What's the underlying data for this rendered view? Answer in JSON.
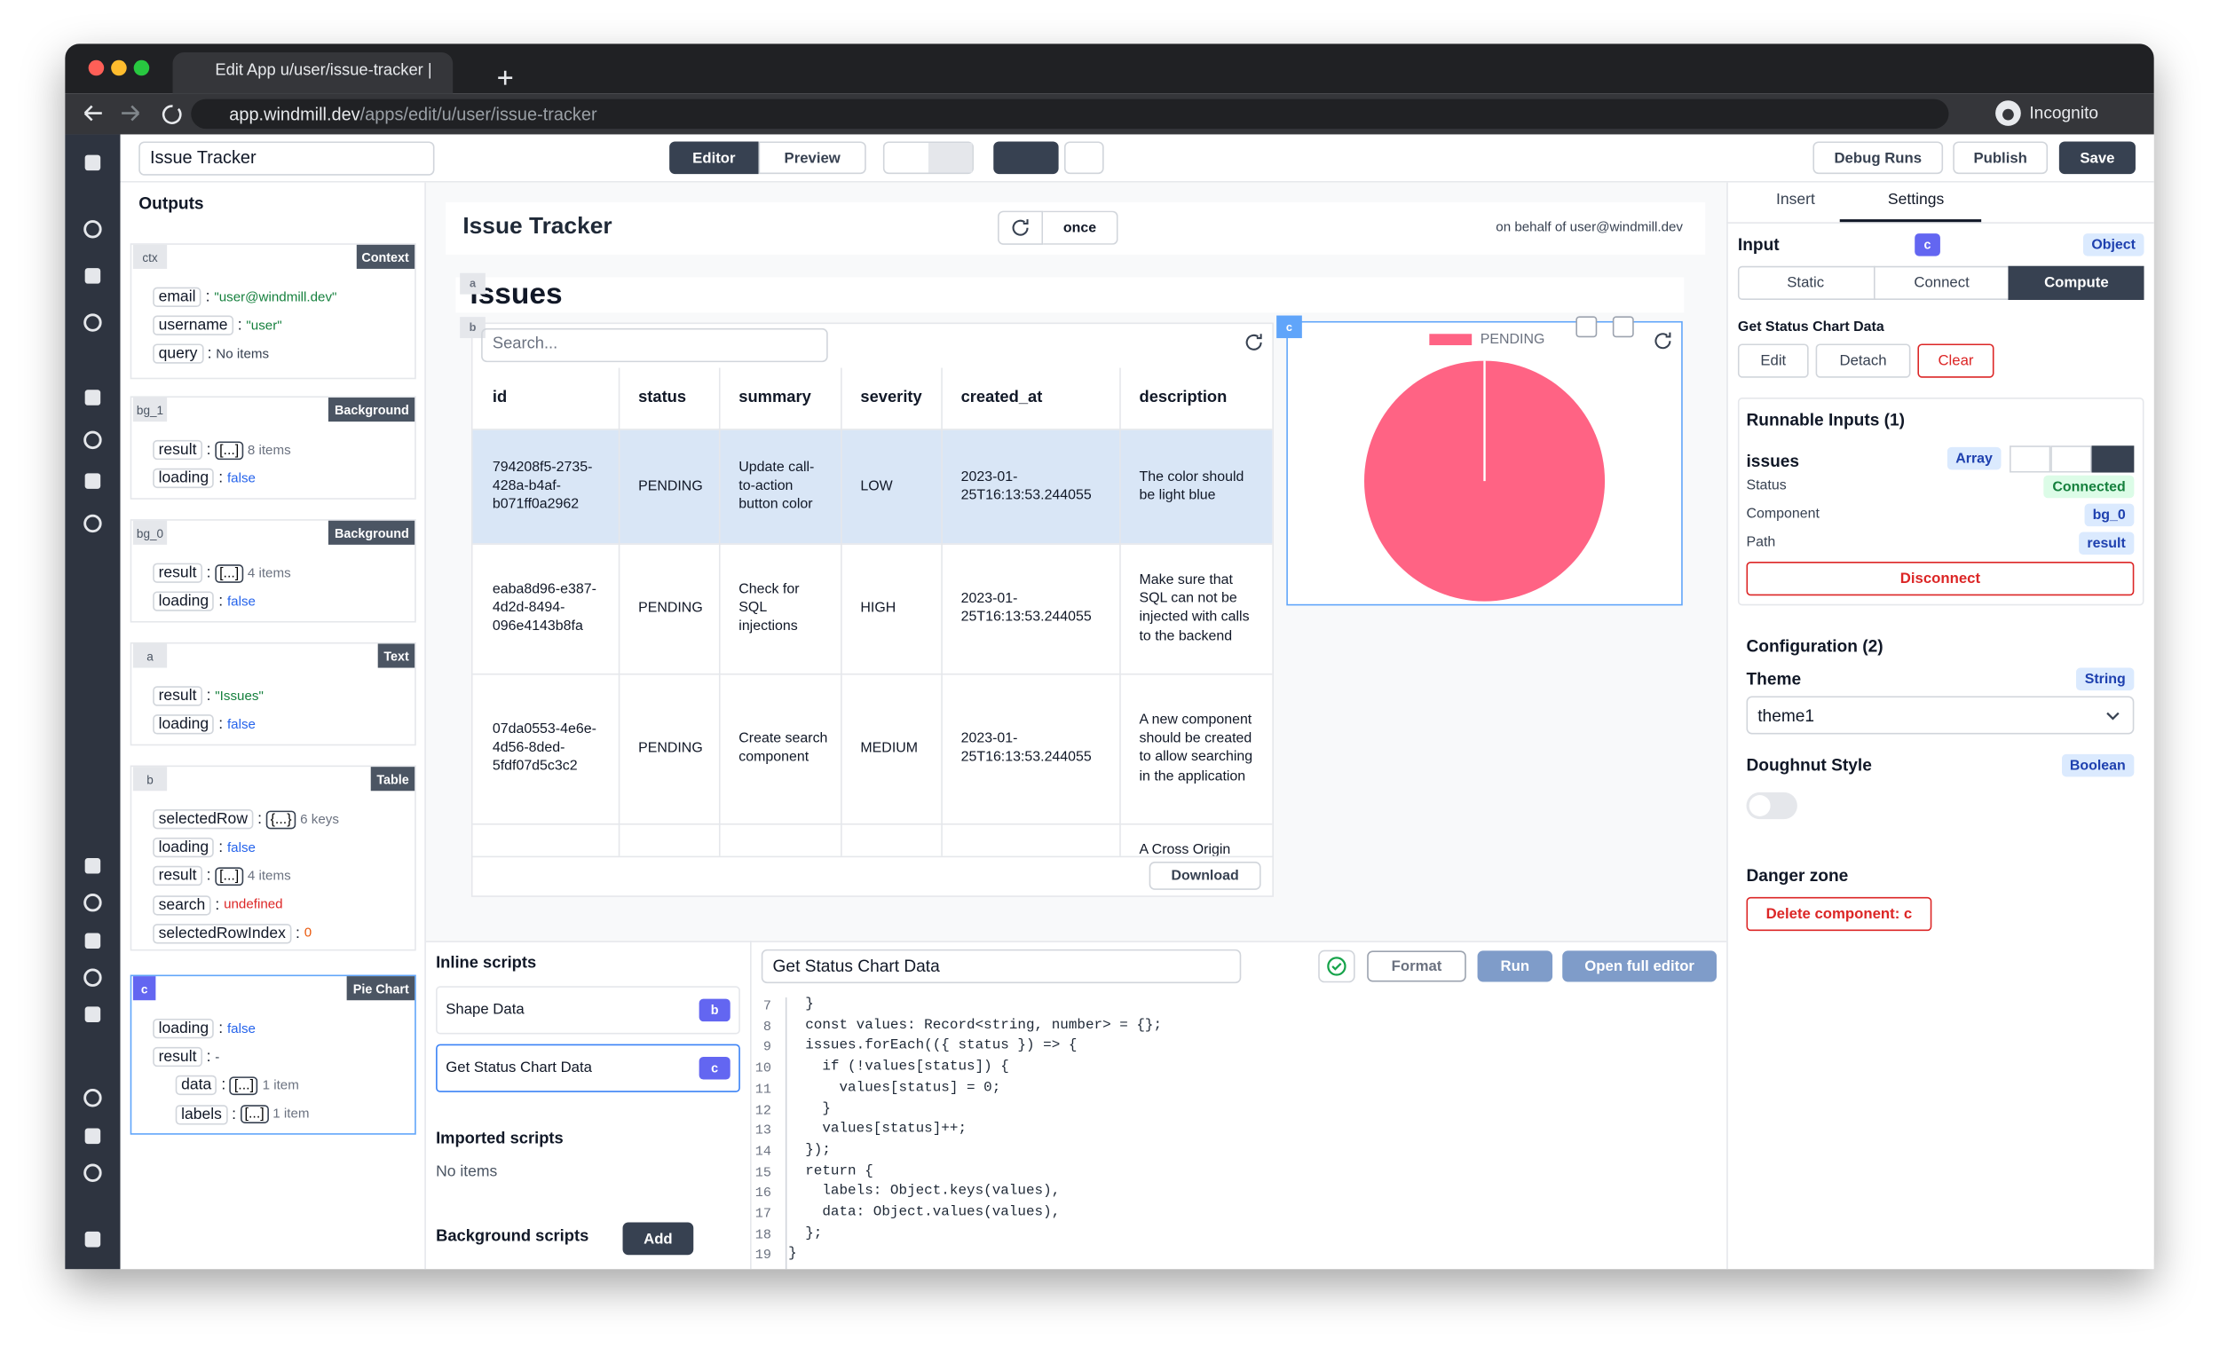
{
  "browser": {
    "tab_title": "Edit App u/user/issue-tracker |",
    "url_host": "app.windmill.dev",
    "url_path": "/apps/edit/u/user/issue-tracker",
    "profile": "Incognito"
  },
  "toolbar": {
    "app_name": "Issue Tracker",
    "editor": "Editor",
    "preview": "Preview",
    "debug_runs": "Debug Runs",
    "publish": "Publish",
    "save": "Save"
  },
  "outputs": {
    "title": "Outputs",
    "separator": ":",
    "panels": [
      {
        "id": "ctx",
        "kind": "Context",
        "rows": [
          {
            "key": "email",
            "value": "\"user@windmill.dev\""
          },
          {
            "key": "username",
            "value": "\"user\""
          },
          {
            "key": "query",
            "value": "No items"
          }
        ]
      },
      {
        "id": "bg_1",
        "kind": "Background",
        "rows": [
          {
            "key": "result",
            "badge": "[...]",
            "note": "8 items"
          },
          {
            "key": "loading",
            "value": "false"
          }
        ]
      },
      {
        "id": "bg_0",
        "kind": "Background",
        "rows": [
          {
            "key": "result",
            "badge": "[...]",
            "note": "4 items"
          },
          {
            "key": "loading",
            "value": "false"
          }
        ]
      },
      {
        "id": "a",
        "kind": "Text",
        "rows": [
          {
            "key": "result",
            "value": "\"Issues\""
          },
          {
            "key": "loading",
            "value": "false"
          }
        ]
      },
      {
        "id": "b",
        "kind": "Table",
        "rows": [
          {
            "key": "selectedRow",
            "badge": "{...}",
            "note": "6 keys"
          },
          {
            "key": "loading",
            "value": "false"
          },
          {
            "key": "result",
            "badge": "[...]",
            "note": "4 items"
          },
          {
            "key": "search",
            "value": "undefined"
          },
          {
            "key": "selectedRowIndex",
            "value": "0"
          }
        ]
      },
      {
        "id": "c",
        "kind": "Pie Chart",
        "rows": [
          {
            "key": "loading",
            "value": "false"
          },
          {
            "key": "result",
            "value": "-",
            "children": [
              {
                "key": "data",
                "badge": "[...]",
                "note": "1 item"
              },
              {
                "key": "labels",
                "badge": "[...]",
                "note": "1 item"
              }
            ]
          }
        ]
      }
    ]
  },
  "canvas": {
    "title": "Issue Tracker",
    "refresh_mode": "once",
    "on_behalf": "on behalf of user@windmill.dev",
    "components": {
      "a": {
        "id": "a",
        "text": "Issues"
      },
      "b": {
        "id": "b",
        "search_placeholder": "Search...",
        "columns": [
          "id",
          "status",
          "summary",
          "severity",
          "created_at",
          "description"
        ],
        "rows": [
          [
            "794208f5-2735-428a-b4af-b071ff0a2962",
            "PENDING",
            "Update call-to-action button color",
            "LOW",
            "2023-01-25T16:13:53.244055",
            "The color should be light blue"
          ],
          [
            "eaba8d96-e387-4d2d-8494-096e4143b8fa",
            "PENDING",
            "Check for SQL injections",
            "HIGH",
            "2023-01-25T16:13:53.244055",
            "Make sure that SQL can not be injected with calls to the backend"
          ],
          [
            "07da0553-4e6e-4d56-8ded-5fdf07d5c3c2",
            "PENDING",
            "Create search component",
            "MEDIUM",
            "2023-01-25T16:13:53.244055",
            "A new component should be created to allow searching in the application"
          ],
          [
            null,
            null,
            null,
            null,
            null,
            "A Cross Origin"
          ]
        ],
        "download": "Download"
      },
      "c": {
        "id": "c"
      }
    }
  },
  "chart_data": {
    "type": "pie",
    "categories": [
      "PENDING"
    ],
    "values": [
      4
    ],
    "colors": [
      "#ff6384"
    ]
  },
  "scripts": {
    "inline_title": "Inline scripts",
    "inline": [
      {
        "name": "Shape Data",
        "id": "b"
      },
      {
        "name": "Get Status Chart Data",
        "id": "c"
      }
    ],
    "imported_title": "Imported scripts",
    "imported_empty": "No items",
    "background_title": "Background scripts",
    "add": "Add"
  },
  "editor": {
    "script_name": "Get Status Chart Data",
    "format": "Format",
    "run": "Run",
    "open_full": "Open full editor",
    "lines": [
      {
        "n": 7,
        "code": "  }"
      },
      {
        "n": 8,
        "code": "  const values: Record<string, number> = {};"
      },
      {
        "n": 9,
        "code": "  issues.forEach(({ status }) => {"
      },
      {
        "n": 10,
        "code": "    if (!values[status]) {"
      },
      {
        "n": 11,
        "code": "      values[status] = 0;"
      },
      {
        "n": 12,
        "code": "    }"
      },
      {
        "n": 13,
        "code": "    values[status]++;"
      },
      {
        "n": 14,
        "code": "  });"
      },
      {
        "n": 15,
        "code": "  return {"
      },
      {
        "n": 16,
        "code": "    labels: Object.keys(values),"
      },
      {
        "n": 17,
        "code": "    data: Object.values(values),"
      },
      {
        "n": 18,
        "code": "  };"
      },
      {
        "n": 19,
        "code": "}"
      }
    ]
  },
  "settings": {
    "tabs": {
      "insert": "Insert",
      "settings": "Settings"
    },
    "input_label": "Input",
    "component_id": "c",
    "input_type": "Object",
    "modes": [
      "Static",
      "Connect",
      "Compute"
    ],
    "script_name": "Get Status Chart Data",
    "actions": {
      "edit": "Edit",
      "detach": "Detach",
      "clear": "Clear"
    },
    "runnable_title": "Runnable Inputs (1)",
    "runnable": {
      "name": "issues",
      "type": "Array",
      "fields": [
        {
          "label": "Status",
          "value": "Connected"
        },
        {
          "label": "Component",
          "value": "bg_0"
        },
        {
          "label": "Path",
          "value": "result"
        }
      ],
      "disconnect": "Disconnect"
    },
    "config_title": "Configuration (2)",
    "config": [
      {
        "label": "Theme",
        "type": "String",
        "value": "theme1"
      },
      {
        "label": "Doughnut Style",
        "type": "Boolean"
      }
    ],
    "danger_title": "Danger zone",
    "delete": "Delete component: c"
  }
}
